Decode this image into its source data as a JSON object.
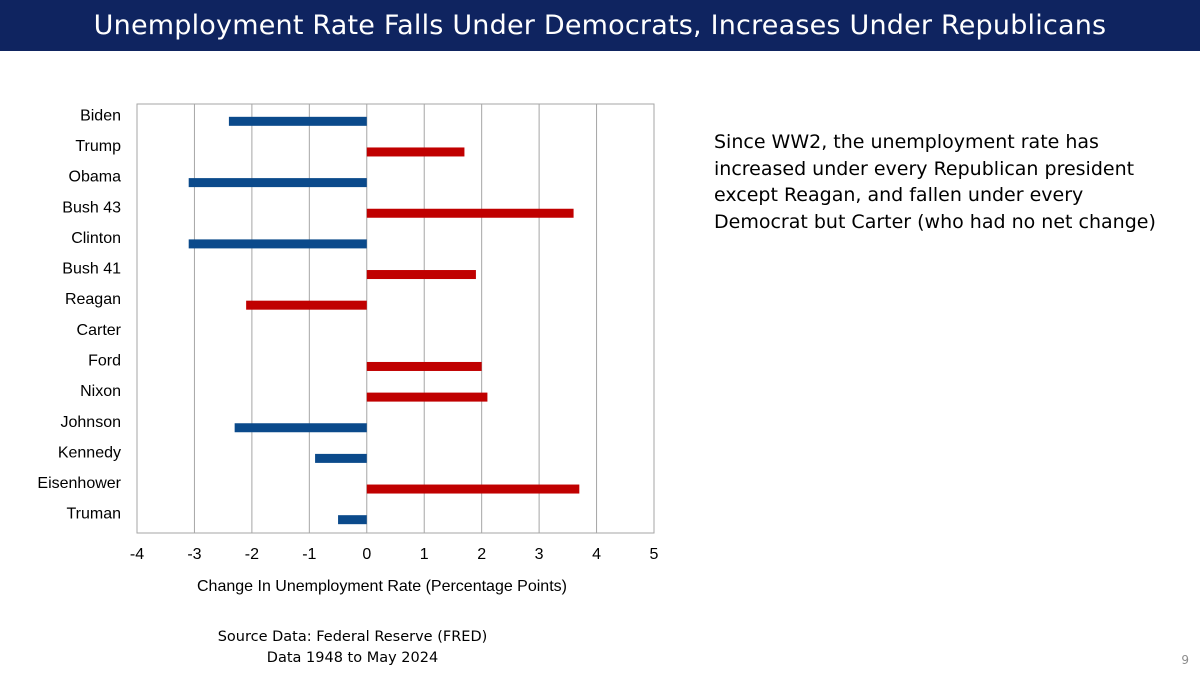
{
  "slide": {
    "title": "Unemployment Rate Falls Under Democrats, Increases Under Republicans",
    "note": "Since WW2, the unemployment rate has increased under every Republican president except Reagan, and fallen under every Democrat but Carter (who had no net change)",
    "source_line1": "Source Data:  Federal Reserve (FRED)",
    "source_line2": "Data 1948 to May 2024",
    "page_number": "9",
    "title_bg": "#0f2460"
  },
  "chart_data": {
    "type": "bar",
    "orientation": "horizontal",
    "title": "",
    "xlabel": "Change In Unemployment Rate (Percentage Points)",
    "ylabel": "",
    "xlim": [
      -4,
      5
    ],
    "xticks": [
      "-4",
      "-3",
      "-2",
      "-1",
      "0",
      "1",
      "2",
      "3",
      "4",
      "5"
    ],
    "grid": "vertical",
    "colors": {
      "Democrat": "#0b4a8b",
      "Republican": "#c00000"
    },
    "categories": [
      "Biden",
      "Trump",
      "Obama",
      "Bush 43",
      "Clinton",
      "Bush 41",
      "Reagan",
      "Carter",
      "Ford",
      "Nixon",
      "Johnson",
      "Kennedy",
      "Eisenhower",
      "Truman"
    ],
    "parties": [
      "Democrat",
      "Republican",
      "Democrat",
      "Republican",
      "Democrat",
      "Republican",
      "Republican",
      "Democrat",
      "Republican",
      "Republican",
      "Democrat",
      "Democrat",
      "Republican",
      "Democrat"
    ],
    "values": [
      -2.4,
      1.7,
      -3.1,
      3.6,
      -3.1,
      1.9,
      -2.1,
      0.0,
      2.0,
      2.1,
      -2.3,
      -0.9,
      3.7,
      -0.5
    ]
  }
}
